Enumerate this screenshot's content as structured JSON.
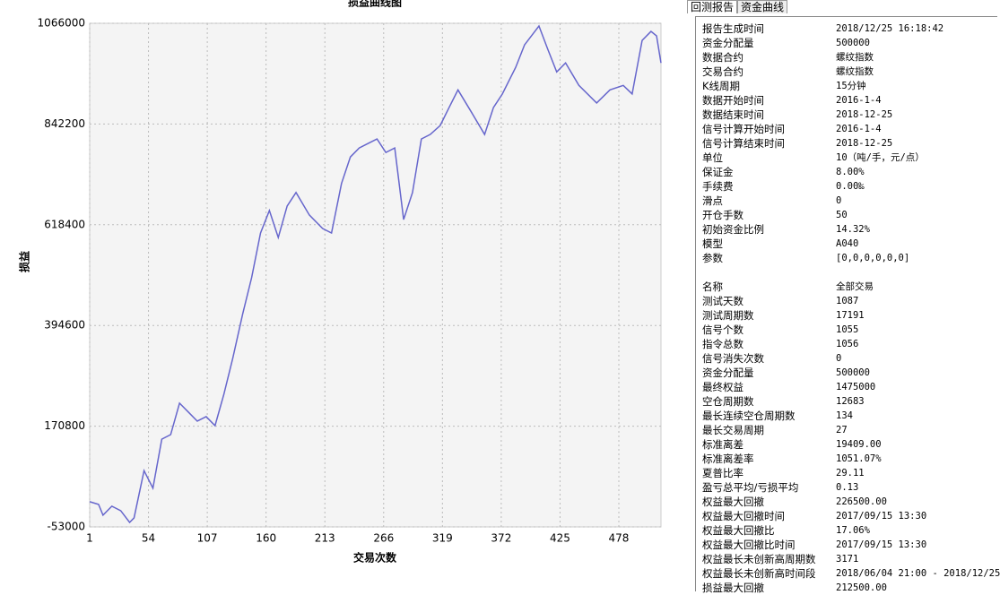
{
  "chart_data": {
    "type": "line",
    "title": "损益曲线图",
    "x_label": "交易次数",
    "y_label": "损益",
    "x": [
      1,
      9,
      13,
      21,
      29,
      37,
      41,
      50,
      58,
      66,
      74,
      82,
      90,
      98,
      106,
      114,
      122,
      130,
      139,
      147,
      155,
      163,
      171,
      179,
      187,
      199,
      211,
      219,
      228,
      236,
      244,
      252,
      260,
      268,
      276,
      284,
      292,
      300,
      308,
      317,
      325,
      333,
      345,
      357,
      365,
      373,
      385,
      393,
      406,
      414,
      422,
      430,
      442,
      458,
      470,
      482,
      490,
      499,
      507,
      512,
      516
    ],
    "series": [
      {
        "color": "#6666cc",
        "values": [
          3000,
          -3000,
          -27000,
          -7000,
          -17000,
          -43000,
          -33000,
          72000,
          33000,
          142000,
          152000,
          222000,
          202000,
          182000,
          192000,
          172000,
          242000,
          322000,
          421000,
          501000,
          600000,
          650000,
          590000,
          660000,
          690000,
          640000,
          610000,
          600000,
          710000,
          769000,
          789000,
          799000,
          809000,
          779000,
          789000,
          630000,
          690000,
          809000,
          819000,
          839000,
          879000,
          918000,
          869000,
          819000,
          879000,
          909000,
          968000,
          1018000,
          1060000,
          1008000,
          958000,
          978000,
          928000,
          889000,
          918000,
          928000,
          909000,
          1028000,
          1048000,
          1038000,
          978000
        ]
      }
    ],
    "xlim": [
      1,
      516
    ],
    "xticks": [
      1,
      54,
      107,
      160,
      213,
      266,
      319,
      372,
      425,
      478
    ],
    "ylim": [
      -53000,
      1066000
    ],
    "yticks": [
      -53000,
      170800,
      394600,
      618400,
      842200,
      1066000
    ],
    "grid": true
  },
  "tabs": [
    "回测报告",
    "资金曲线"
  ],
  "report": {
    "sections": [
      {
        "rows": [
          [
            "报告生成时间",
            "2018/12/25 16:18:42"
          ],
          [
            "资金分配量",
            "500000"
          ],
          [
            "数据合约",
            "螺纹指数"
          ],
          [
            "交易合约",
            "螺纹指数"
          ],
          [
            "K线周期",
            "15分钟"
          ],
          [
            "数据开始时间",
            "2016-1-4"
          ],
          [
            "数据结束时间",
            "2018-12-25"
          ],
          [
            "信号计算开始时间",
            "2016-1-4"
          ],
          [
            "信号计算结束时间",
            "2018-12-25"
          ],
          [
            "单位",
            "10（吨/手，元/点）"
          ],
          [
            "保证金",
            "8.00%"
          ],
          [
            "手续费",
            "0.00‰"
          ],
          [
            "滑点",
            "0"
          ],
          [
            "开仓手数",
            "50"
          ],
          [
            "初始资金比例",
            "14.32%"
          ],
          [
            "模型",
            "A040"
          ],
          [
            "参数",
            "[0,0,0,0,0,0]"
          ]
        ]
      },
      {
        "rows": [
          [
            "名称",
            "全部交易"
          ],
          [
            "测试天数",
            "1087"
          ],
          [
            "测试周期数",
            "17191"
          ],
          [
            "信号个数",
            "1055"
          ],
          [
            "指令总数",
            "1056"
          ],
          [
            "信号消失次数",
            "0"
          ],
          [
            "资金分配量",
            "500000"
          ],
          [
            "最终权益",
            "1475000"
          ],
          [
            "空仓周期数",
            "12683"
          ],
          [
            "最长连续空仓周期数",
            "134"
          ],
          [
            "最长交易周期",
            "27"
          ],
          [
            "标准离差",
            "19409.00"
          ],
          [
            "标准离差率",
            "1051.07%"
          ],
          [
            "夏普比率",
            "29.11"
          ],
          [
            "盈亏总平均/亏损平均",
            "0.13"
          ],
          [
            "权益最大回撤",
            "226500.00"
          ],
          [
            "权益最大回撤时间",
            "2017/09/15 13:30"
          ],
          [
            "权益最大回撤比",
            "17.06%"
          ],
          [
            "权益最大回撤比时间",
            "2017/09/15 13:30"
          ],
          [
            "权益最长未创新高周期数",
            "3171"
          ],
          [
            "权益最长未创新高时间段",
            "2018/06/04 21:00 - 2018/12/25"
          ],
          [
            "损益最大回撤",
            "212500.00"
          ]
        ]
      }
    ]
  }
}
